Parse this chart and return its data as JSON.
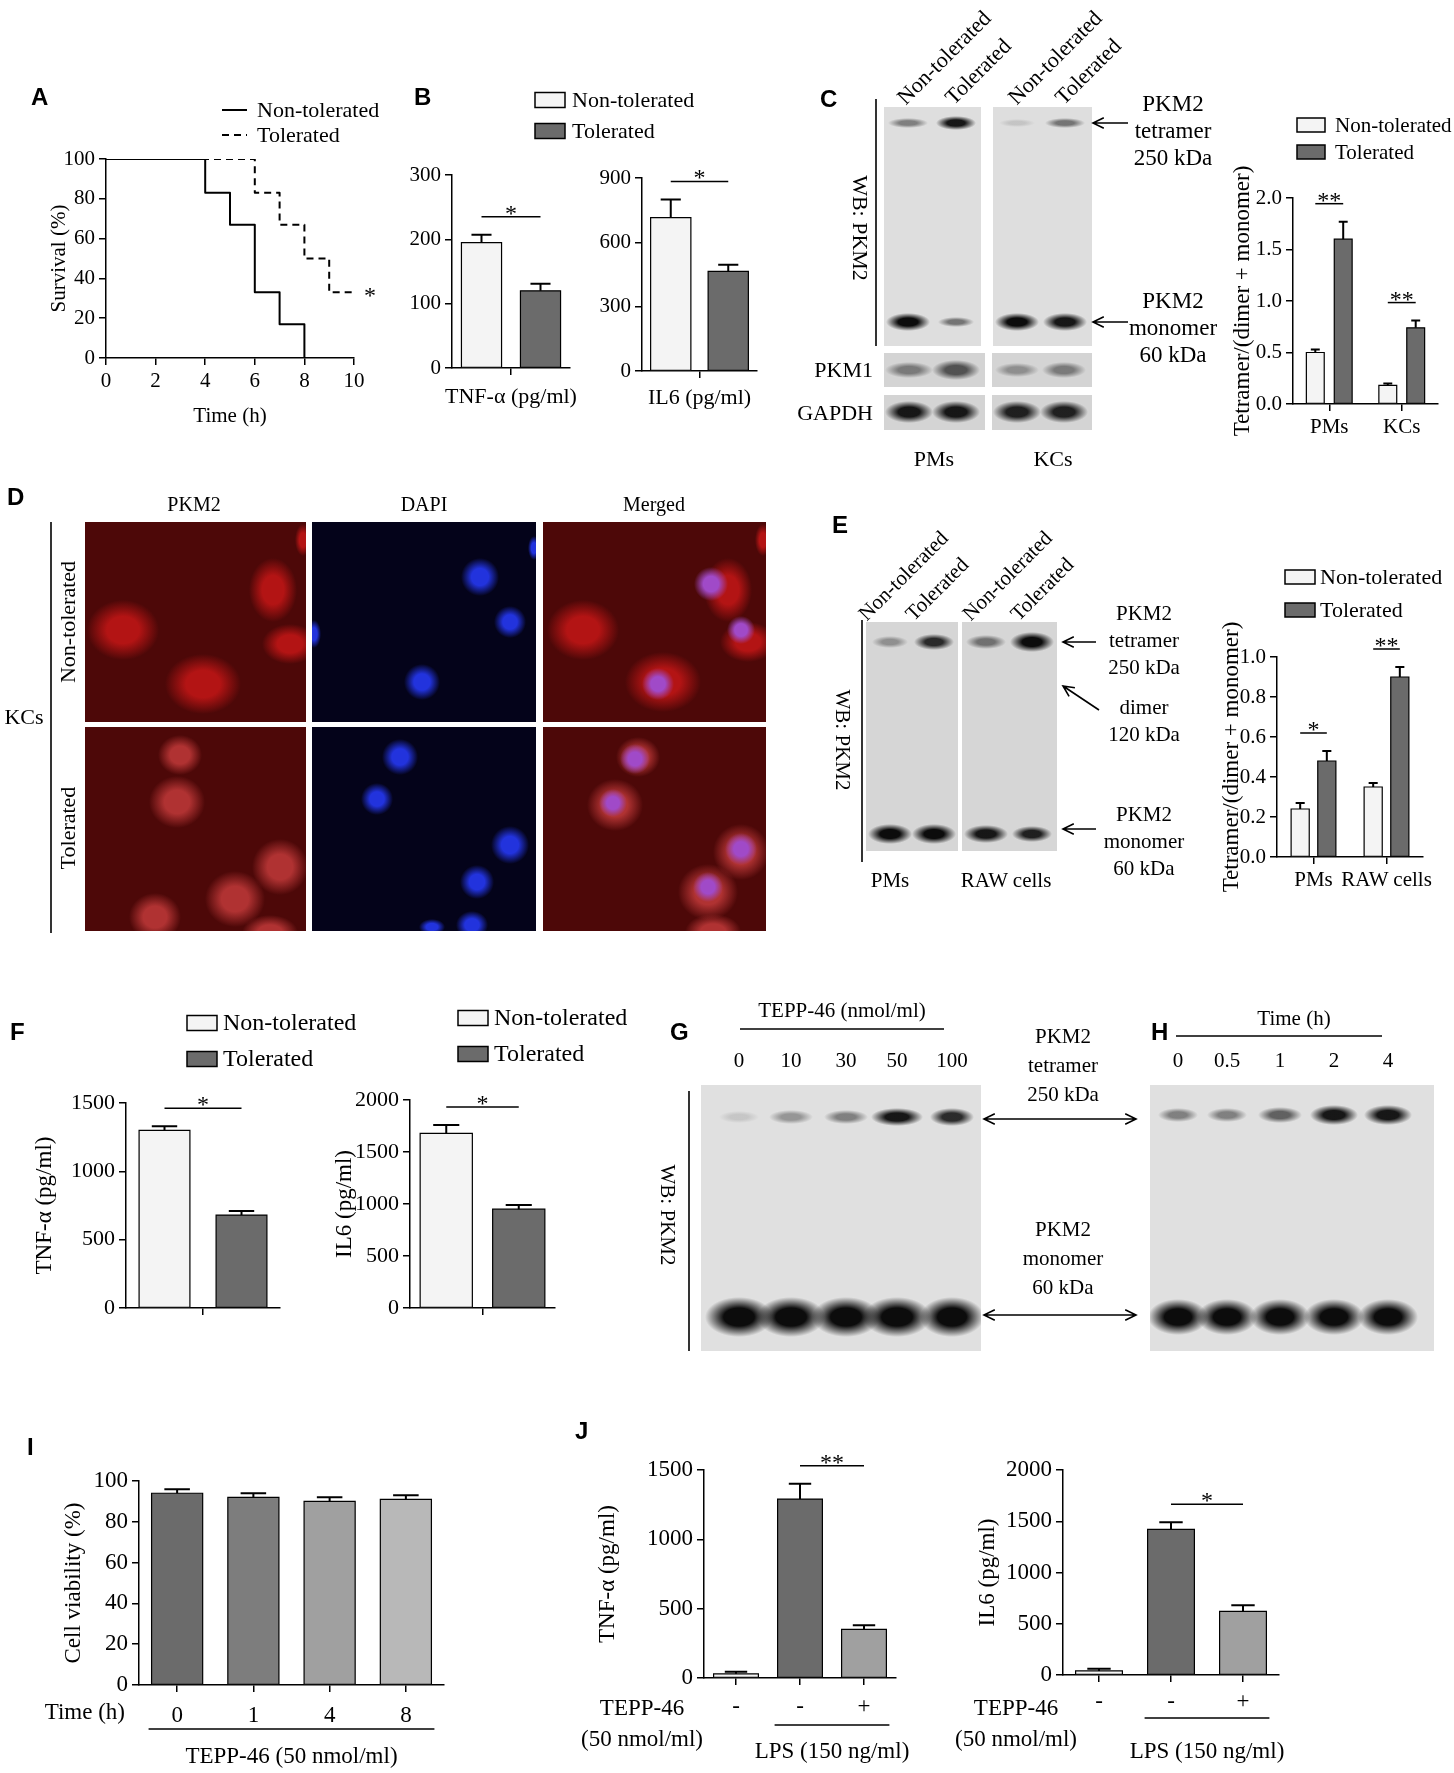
{
  "chart_data": [
    {
      "type": "step",
      "title": "A",
      "xlabel": "Time (h)",
      "ylabel": "Survival (%)",
      "xlim": [
        0,
        10
      ],
      "xticks": [
        0,
        2,
        4,
        6,
        8,
        10
      ],
      "ylim": [
        0,
        100
      ],
      "yticks": [
        0,
        20,
        40,
        60,
        80,
        100
      ],
      "legend": "top right",
      "series": [
        {
          "name": "Non-tolerated",
          "color": "#000000",
          "line_style": "solid",
          "x": [
            0,
            4,
            5,
            6,
            7,
            8
          ],
          "values": [
            100,
            83,
            67,
            33,
            17,
            0
          ]
        },
        {
          "name": "Tolerated",
          "color": "#000000",
          "line_style": "dashed",
          "x": [
            0,
            6,
            7,
            8,
            9,
            10
          ],
          "values": [
            100,
            83,
            67,
            50,
            33,
            33
          ]
        }
      ],
      "annotations": [
        {
          "text": "*",
          "x": 10,
          "y": 33
        }
      ]
    },
    {
      "type": "bar",
      "title": "B",
      "xlabel": "TNF-α (pg/ml)",
      "categories": [
        null
      ],
      "ylim": [
        0,
        300
      ],
      "yticks": [
        0,
        100,
        200,
        300
      ],
      "legend": "top",
      "series": [
        {
          "name": "Non-tolerated",
          "color": "#f4f4f4",
          "values": [
            195
          ],
          "errors": [
            [
              195,
              207
            ]
          ]
        },
        {
          "name": "Tolerated",
          "color": "#6b6b6b",
          "values": [
            120
          ],
          "errors": [
            [
              120,
              131
            ]
          ]
        }
      ],
      "annotations": [
        "*"
      ]
    },
    {
      "type": "bar",
      "xlabel": "IL6 (pg/ml)",
      "categories": [
        null
      ],
      "ylim": [
        0,
        900
      ],
      "yticks": [
        0,
        300,
        600,
        900
      ],
      "series": [
        {
          "color": "#f4f4f4",
          "values": [
            715
          ],
          "errors": [
            [
              715,
              800
            ]
          ]
        },
        {
          "color": "#6b6b6b",
          "values": [
            465
          ],
          "errors": [
            [
              465,
              495
            ]
          ]
        }
      ],
      "annotations": [
        "*"
      ]
    },
    {
      "type": "other",
      "title": "C",
      "annotations": [
        "Non-tolerated",
        "Tolerated",
        "Non-tolerated",
        "Tolerated",
        "WB: PKM2",
        "PKM1",
        "GAPDH",
        "PMs",
        "KCs",
        "PKM2\ntetramer\n250 kDa",
        "PKM2\nmonomer\n60 kDa"
      ]
    },
    {
      "type": "bar",
      "ylabel": "Tetramer/(dimer + monomer)",
      "categories": [
        "PMs",
        "KCs"
      ],
      "ylim": [
        0,
        2
      ],
      "yticks": [
        {
          "value": 0,
          "label": "0.0"
        },
        0.5,
        {
          "value": 1,
          "label": "1.0"
        },
        1.5,
        {
          "value": 2,
          "label": "2.0"
        }
      ],
      "legend": "top",
      "series": [
        {
          "name": "Non-tolerated",
          "color": "#f4f4f4",
          "values": [
            0.5,
            0.18
          ],
          "errors": [
            [
              0.5,
              0.53
            ],
            [
              0.18,
              0.2
            ]
          ]
        },
        {
          "name": "Tolerated",
          "color": "#6b6b6b",
          "values": [
            1.6,
            0.74
          ],
          "errors": [
            [
              1.6,
              1.77
            ],
            [
              0.74,
              0.81
            ]
          ]
        }
      ],
      "annotations": [
        "**",
        "**"
      ]
    },
    {
      "type": "other",
      "title": "D",
      "annotations": [
        "PKM2",
        "DAPI",
        "Merged",
        "Non-tolerated",
        "Tolerated",
        "KCs"
      ]
    },
    {
      "type": "other",
      "title": "E",
      "annotations": [
        "Non-tolerated",
        "Tolerated",
        "Non-tolerated",
        "Tolerated",
        "WB: PKM2",
        "PMs",
        "RAW cells",
        "PKM2\ntetramer\n250 kDa",
        "dimer\n120 kDa",
        "PKM2\nmonomer\n60 kDa"
      ]
    },
    {
      "type": "bar",
      "ylabel": "Tetramer/(dimer + monomer)",
      "categories": [
        "PMs",
        "RAW cells"
      ],
      "ylim": [
        0,
        1
      ],
      "yticks": [
        {
          "value": 0,
          "label": "0.0"
        },
        0.2,
        0.4,
        0.6,
        0.8,
        {
          "value": 1,
          "label": "1.0"
        }
      ],
      "legend": "top",
      "series": [
        {
          "name": "Non-tolerated",
          "color": "#f4f4f4",
          "values": [
            0.24,
            0.35
          ],
          "errors": [
            [
              0.24,
              0.27
            ],
            [
              0.35,
              0.37
            ]
          ]
        },
        {
          "name": "Tolerated",
          "color": "#6b6b6b",
          "values": [
            0.48,
            0.9
          ],
          "errors": [
            [
              0.48,
              0.53
            ],
            [
              0.9,
              0.95
            ]
          ]
        }
      ],
      "annotations": [
        "*",
        "**"
      ]
    },
    {
      "type": "bar",
      "title": "F",
      "ylabel": "TNF-α (pg/ml)",
      "categories": [
        null
      ],
      "ylim": [
        0,
        1500
      ],
      "yticks": [
        0,
        500,
        1000,
        1500
      ],
      "legend": "top",
      "series": [
        {
          "name": "Non-tolerated",
          "color": "#f4f4f4",
          "values": [
            1300
          ],
          "errors": [
            [
              1300,
              1330
            ]
          ]
        },
        {
          "name": "Tolerated",
          "color": "#6b6b6b",
          "values": [
            680
          ],
          "errors": [
            [
              680,
              710
            ]
          ]
        }
      ],
      "annotations": [
        "*"
      ]
    },
    {
      "type": "bar",
      "ylabel": "IL6 (pg/ml)",
      "categories": [
        null
      ],
      "ylim": [
        0,
        2000
      ],
      "yticks": [
        0,
        500,
        1000,
        1500,
        2000
      ],
      "legend": "top",
      "series": [
        {
          "name": "Non-tolerated",
          "color": "#f4f4f4",
          "values": [
            1680
          ],
          "errors": [
            [
              1680,
              1760
            ]
          ]
        },
        {
          "name": "Tolerated",
          "color": "#6b6b6b",
          "values": [
            950
          ],
          "errors": [
            [
              950,
              990
            ]
          ]
        }
      ],
      "annotations": [
        "*"
      ]
    },
    {
      "type": "other",
      "title": "G",
      "annotations": [
        "TEPP-46 (nmol/ml)",
        "0",
        "10",
        "30",
        "50",
        "100",
        "WB: PKM2",
        "PKM2\ntetramer\n250 kDa",
        "PKM2\nmonomer\n60 kDa"
      ]
    },
    {
      "type": "other",
      "title": "H",
      "annotations": [
        "Time (h)",
        "0",
        "0.5",
        "1",
        "2",
        "4"
      ]
    },
    {
      "type": "bar",
      "title": "I",
      "xlabel": "Time (h)",
      "ylabel": "Cell viability (%)",
      "categories": [
        "0",
        "1",
        "4",
        "8"
      ],
      "ylim": [
        0,
        100
      ],
      "yticks": [
        0,
        20,
        40,
        60,
        80,
        100
      ],
      "values": [
        94,
        92,
        90,
        91
      ],
      "colors": [
        "#6b6b6b",
        "#7d7d7d",
        "#a0a0a0",
        "#b8b8b8"
      ],
      "errors": [
        [
          94,
          96
        ],
        [
          92,
          94
        ],
        [
          90,
          92
        ],
        [
          91,
          93
        ]
      ],
      "annotations": [
        "TEPP-46 (50 nmol/ml)"
      ]
    },
    {
      "type": "bar",
      "title": "J",
      "xlabel": "TEPP-46\n(50 nmol/ml)",
      "ylabel": "TNF-α (pg/ml)",
      "categories": [
        "-",
        "-",
        "+"
      ],
      "ylim": [
        0,
        1500
      ],
      "yticks": [
        0,
        500,
        1000,
        1500
      ],
      "values": [
        30,
        1290,
        350
      ],
      "colors": [
        "#f4f4f4",
        "#6b6b6b",
        "#a0a0a0"
      ],
      "errors": [
        [
          30,
          45
        ],
        [
          1290,
          1400
        ],
        [
          350,
          380
        ]
      ],
      "annotations": [
        "**",
        "LPS (150 ng/ml)"
      ]
    },
    {
      "type": "bar",
      "xlabel": "TEPP-46\n(50 nmol/ml)",
      "ylabel": "IL6 (pg/ml)",
      "categories": [
        "-",
        "-",
        "+"
      ],
      "ylim": [
        0,
        2000
      ],
      "yticks": [
        0,
        500,
        1000,
        1500,
        2000
      ],
      "values": [
        40,
        1420,
        620
      ],
      "colors": [
        "#f4f4f4",
        "#6b6b6b",
        "#a0a0a0"
      ],
      "errors": [
        [
          40,
          60
        ],
        [
          1420,
          1490
        ],
        [
          620,
          680
        ]
      ],
      "annotations": [
        "*",
        "LPS (150 ng/ml)"
      ]
    }
  ]
}
